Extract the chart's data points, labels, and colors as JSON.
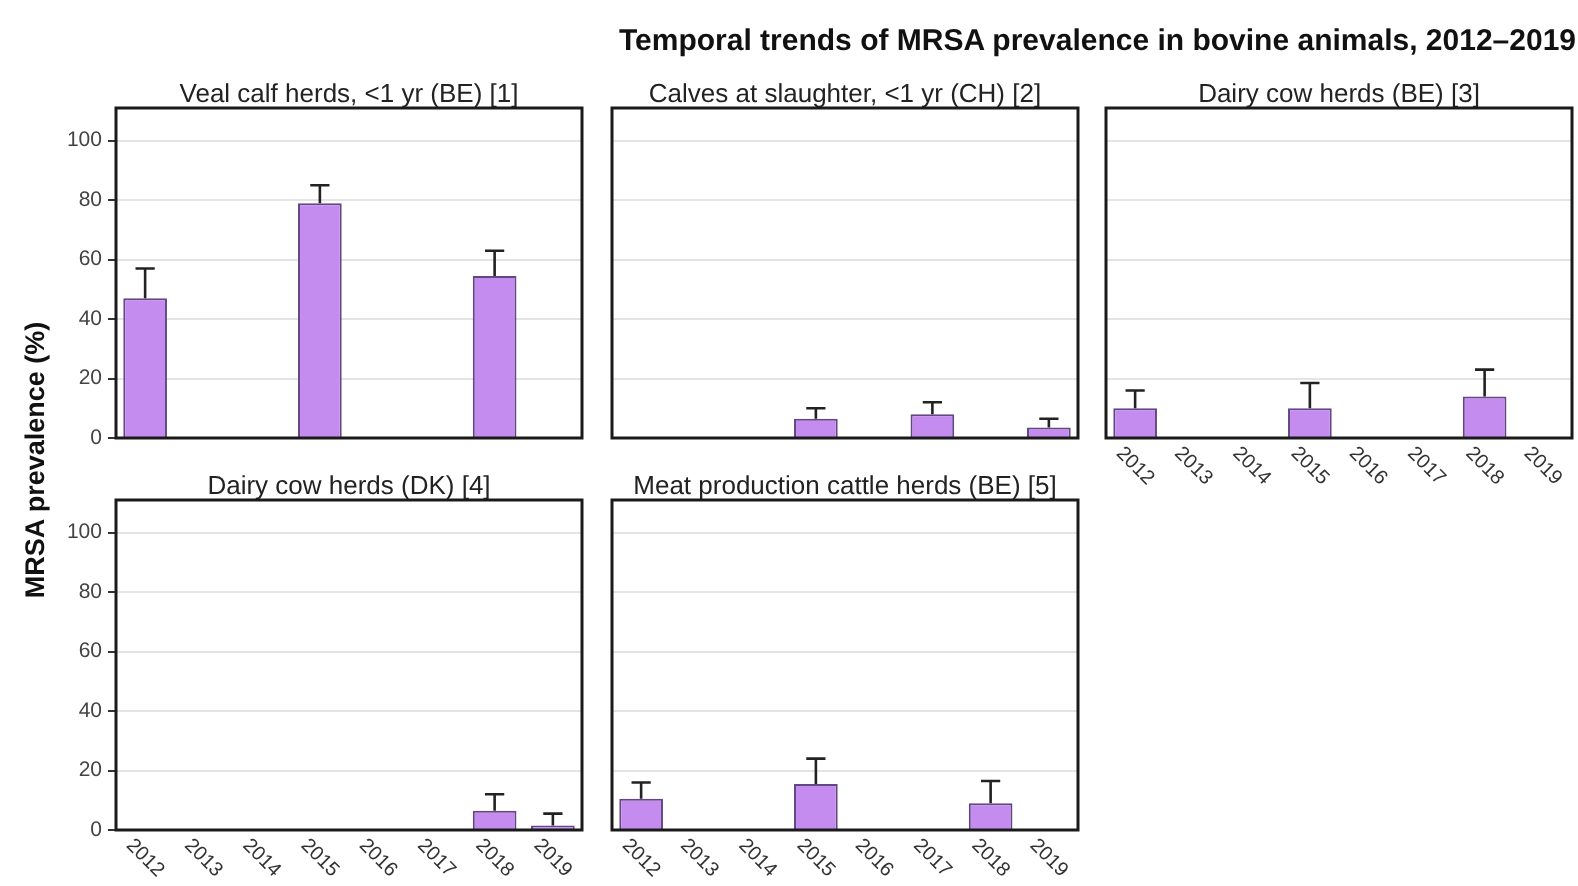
{
  "chart_data": [
    {
      "type": "other",
      "title": "Temporal trends of MRSA prevalence in bovine animals, 2012–2019",
      "ylabel": "MRSA prevalence (%)"
    },
    {
      "type": "bar",
      "title": "Veal calf herds, <1 yr (BE) [1]",
      "categories": [
        "2012",
        "2013",
        "2014",
        "2015",
        "2016",
        "2017",
        "2018",
        "2019"
      ],
      "values": [
        47,
        null,
        null,
        79,
        null,
        null,
        54.5,
        null
      ],
      "errors": [
        [
          47,
          57
        ],
        null,
        null,
        [
          79,
          85
        ],
        null,
        null,
        [
          54.5,
          63
        ],
        null
      ],
      "color": "#c58cf0",
      "ylim": [
        0,
        111
      ],
      "yticks": [
        0,
        20,
        40,
        60,
        80,
        100
      ],
      "grid": "y",
      "tick_labels": "y"
    },
    {
      "type": "bar",
      "title": "Calves at slaughter, <1 yr (CH) [2]",
      "categories": [
        "2012",
        "2013",
        "2014",
        "2015",
        "2016",
        "2017",
        "2018",
        "2019"
      ],
      "values": [
        null,
        null,
        null,
        6.5,
        null,
        8,
        null,
        3.5
      ],
      "errors": [
        null,
        null,
        null,
        [
          6.5,
          10
        ],
        null,
        [
          8,
          12
        ],
        null,
        [
          3.5,
          6.5
        ]
      ],
      "color": "#c58cf0",
      "ylim": [
        0,
        111
      ],
      "yticks": [
        0,
        20,
        40,
        60,
        80,
        100
      ],
      "grid": "y",
      "tick_labels": false
    },
    {
      "type": "bar",
      "title": "Dairy cow herds (BE) [3]",
      "categories": [
        "2012",
        "2013",
        "2014",
        "2015",
        "2016",
        "2017",
        "2018",
        "2019"
      ],
      "values": [
        10,
        null,
        null,
        10,
        null,
        null,
        14,
        null
      ],
      "errors": [
        [
          10,
          16
        ],
        null,
        null,
        [
          10,
          18.5
        ],
        null,
        null,
        [
          14,
          23
        ],
        null
      ],
      "color": "#c58cf0",
      "ylim": [
        0,
        111
      ],
      "yticks": [
        0,
        20,
        40,
        60,
        80,
        100
      ],
      "grid": "y",
      "tick_labels": "x"
    },
    {
      "type": "bar",
      "title": "Dairy cow herds (DK) [4]",
      "categories": [
        "2012",
        "2013",
        "2014",
        "2015",
        "2016",
        "2017",
        "2018",
        "2019"
      ],
      "values": [
        null,
        null,
        null,
        null,
        null,
        null,
        6.5,
        1.5
      ],
      "errors": [
        null,
        null,
        null,
        null,
        null,
        null,
        [
          6.5,
          12
        ],
        [
          1.5,
          5.5
        ]
      ],
      "color": "#c58cf0",
      "ylim": [
        0,
        111
      ],
      "yticks": [
        0,
        20,
        40,
        60,
        80,
        100
      ],
      "grid": "y"
    },
    {
      "type": "bar",
      "title": "Meat production cattle herds (BE) [5]",
      "categories": [
        "2012",
        "2013",
        "2014",
        "2015",
        "2016",
        "2017",
        "2018",
        "2019"
      ],
      "values": [
        10.5,
        null,
        null,
        15.5,
        null,
        null,
        9,
        null
      ],
      "errors": [
        [
          10.5,
          16
        ],
        null,
        null,
        [
          15.5,
          24
        ],
        null,
        null,
        [
          9,
          16.5
        ],
        null
      ],
      "color": "#c58cf0",
      "ylim": [
        0,
        111
      ],
      "yticks": [
        0,
        20,
        40,
        60,
        80,
        100
      ],
      "grid": "y",
      "tick_labels": "x"
    }
  ]
}
